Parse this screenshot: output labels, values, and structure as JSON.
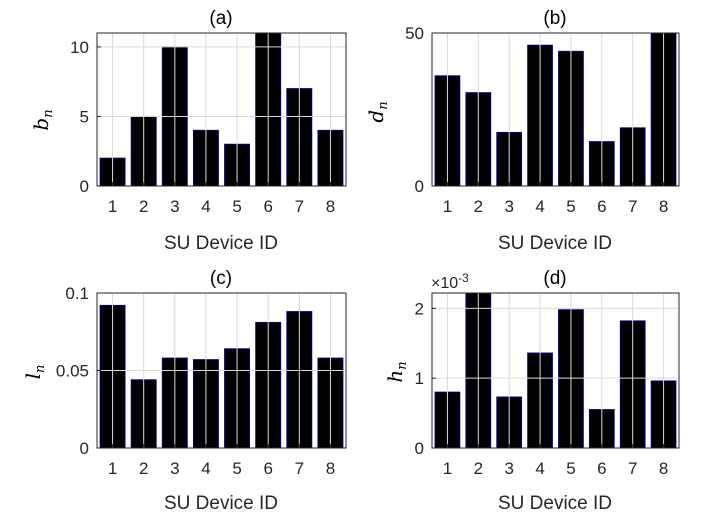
{
  "chart_data": [
    {
      "type": "bar",
      "title": "(a)",
      "xlabel": "SU Device ID",
      "ylabel": "b",
      "ylabel_sub": "n",
      "categories": [
        "1",
        "2",
        "3",
        "4",
        "5",
        "6",
        "7",
        "8"
      ],
      "values": [
        2,
        5,
        10,
        4,
        3,
        11,
        7,
        4
      ],
      "ylim": [
        0,
        11
      ],
      "yticks": [
        "0",
        "5",
        "10"
      ],
      "grid": true,
      "bar_color": "#000000",
      "edge_color": "#00007a"
    },
    {
      "type": "bar",
      "title": "(b)",
      "xlabel": "SU Device ID",
      "ylabel": "d",
      "ylabel_sub": "n",
      "categories": [
        "1",
        "2",
        "3",
        "4",
        "5",
        "6",
        "7",
        "8"
      ],
      "values": [
        36,
        30.5,
        17.5,
        46,
        44,
        14.5,
        19,
        50
      ],
      "ylim": [
        0,
        50
      ],
      "yticks": [
        "0",
        "50"
      ],
      "grid": true,
      "bar_color": "#000000",
      "edge_color": "#00007a"
    },
    {
      "type": "bar",
      "title": "(c)",
      "xlabel": "SU Device ID",
      "ylabel": "l",
      "ylabel_sub": "n",
      "categories": [
        "1",
        "2",
        "3",
        "4",
        "5",
        "6",
        "7",
        "8"
      ],
      "values": [
        0.092,
        0.044,
        0.058,
        0.057,
        0.064,
        0.081,
        0.088,
        0.058
      ],
      "ylim": [
        0,
        0.1
      ],
      "yticks": [
        "0",
        "0.05",
        "0.1"
      ],
      "grid": true,
      "bar_color": "#000000",
      "edge_color": "#00007a"
    },
    {
      "type": "bar",
      "title": "(d)",
      "xlabel": "SU Device ID",
      "ylabel": "h",
      "ylabel_sub": "n",
      "exponent_label": "×10",
      "exponent_power": "-3",
      "categories": [
        "1",
        "2",
        "3",
        "4",
        "5",
        "6",
        "7",
        "8"
      ],
      "values": [
        0.8,
        2.22,
        0.73,
        1.36,
        1.98,
        0.55,
        1.82,
        0.96
      ],
      "ylim": [
        0,
        2.22
      ],
      "yticks": [
        "0",
        "1",
        "2"
      ],
      "grid": true,
      "bar_color": "#000000",
      "edge_color": "#00007a"
    }
  ]
}
